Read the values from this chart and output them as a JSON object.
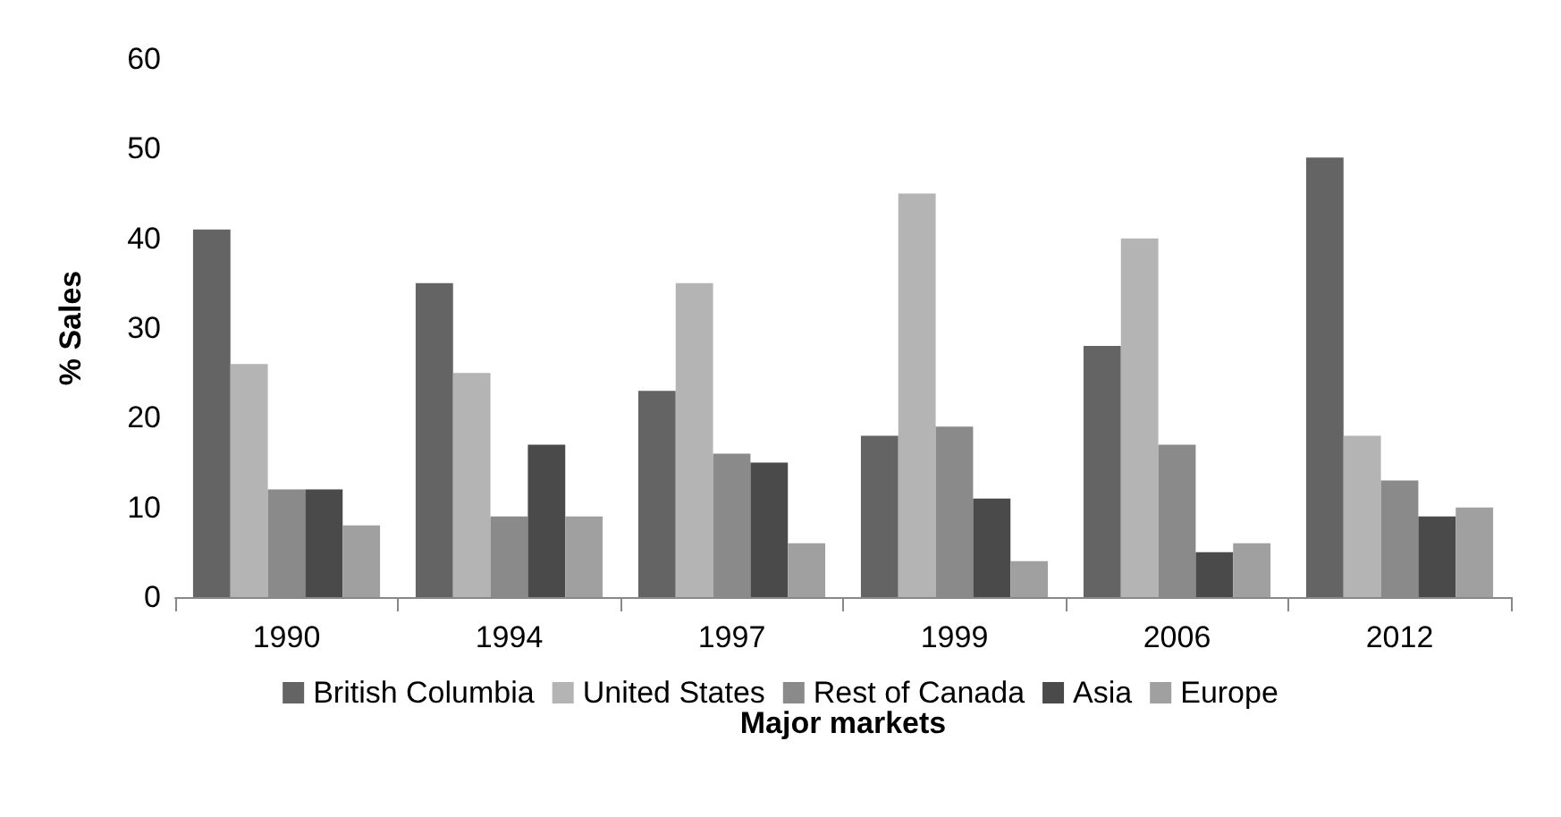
{
  "chart_data": {
    "type": "bar",
    "xlabel": "Major markets",
    "ylabel": "% Sales",
    "categories": [
      "1990",
      "1994",
      "1997",
      "1999",
      "2006",
      "2012"
    ],
    "series": [
      {
        "name": "British Columbia",
        "color": "#646464",
        "values": [
          41,
          35,
          23,
          18,
          28,
          49
        ]
      },
      {
        "name": "United States",
        "color": "#b4b4b4",
        "values": [
          26,
          25,
          35,
          45,
          40,
          18
        ]
      },
      {
        "name": "Rest of Canada",
        "color": "#8a8a8a",
        "values": [
          12,
          9,
          16,
          19,
          17,
          13
        ]
      },
      {
        "name": "Asia",
        "color": "#4a4a4a",
        "values": [
          12,
          17,
          15,
          11,
          5,
          9
        ]
      },
      {
        "name": "Europe",
        "color": "#a0a0a0",
        "values": [
          8,
          9,
          6,
          4,
          6,
          10
        ]
      }
    ],
    "ylim": [
      0,
      60
    ],
    "yticks": [
      0,
      10,
      20,
      30,
      40,
      50,
      60
    ],
    "grid": false,
    "legend": "bottom"
  }
}
